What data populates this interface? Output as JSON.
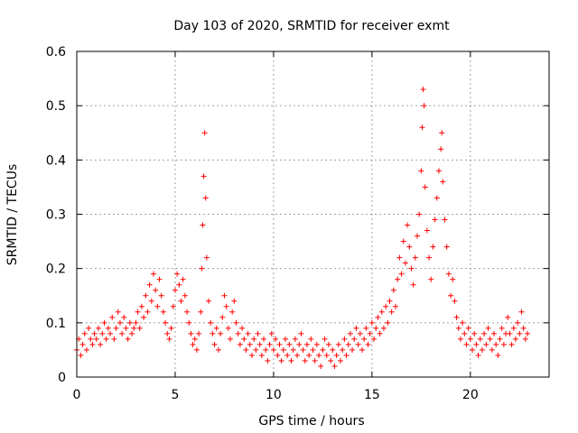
{
  "chart_data": {
    "type": "scatter",
    "title": "Day 103 of 2020, SRMTID for receiver exmt",
    "xlabel": "GPS time / hours",
    "ylabel": "SRMTID / TECUs",
    "xlim": [
      0,
      24
    ],
    "ylim": [
      0,
      0.6
    ],
    "xticks": [
      0,
      5,
      10,
      15,
      20
    ],
    "yticks": [
      0,
      0.1,
      0.2,
      0.3,
      0.4,
      0.5,
      0.6
    ],
    "xtick_labels": [
      "0",
      "5",
      "10",
      "15",
      "20"
    ],
    "ytick_labels": [
      "0",
      "0.1",
      "0.2",
      "0.3",
      "0.4",
      "0.5",
      "0.6"
    ],
    "grid": true,
    "marker": "+",
    "color": "#ff0000",
    "series": [
      {
        "name": "SRMTID",
        "points": [
          [
            0.0,
            0.05
          ],
          [
            0.1,
            0.07
          ],
          [
            0.2,
            0.04
          ],
          [
            0.3,
            0.06
          ],
          [
            0.4,
            0.08
          ],
          [
            0.5,
            0.05
          ],
          [
            0.6,
            0.09
          ],
          [
            0.7,
            0.07
          ],
          [
            0.8,
            0.06
          ],
          [
            0.9,
            0.08
          ],
          [
            1.0,
            0.07
          ],
          [
            1.1,
            0.09
          ],
          [
            1.2,
            0.06
          ],
          [
            1.3,
            0.08
          ],
          [
            1.4,
            0.1
          ],
          [
            1.5,
            0.07
          ],
          [
            1.6,
            0.09
          ],
          [
            1.7,
            0.08
          ],
          [
            1.8,
            0.11
          ],
          [
            1.9,
            0.07
          ],
          [
            2.0,
            0.09
          ],
          [
            2.1,
            0.12
          ],
          [
            2.2,
            0.1
          ],
          [
            2.3,
            0.08
          ],
          [
            2.4,
            0.11
          ],
          [
            2.5,
            0.09
          ],
          [
            2.6,
            0.07
          ],
          [
            2.7,
            0.1
          ],
          [
            2.8,
            0.08
          ],
          [
            2.9,
            0.09
          ],
          [
            3.0,
            0.1
          ],
          [
            3.1,
            0.12
          ],
          [
            3.2,
            0.09
          ],
          [
            3.3,
            0.13
          ],
          [
            3.4,
            0.11
          ],
          [
            3.5,
            0.15
          ],
          [
            3.6,
            0.12
          ],
          [
            3.7,
            0.17
          ],
          [
            3.8,
            0.14
          ],
          [
            3.9,
            0.19
          ],
          [
            4.0,
            0.16
          ],
          [
            4.1,
            0.13
          ],
          [
            4.2,
            0.18
          ],
          [
            4.3,
            0.15
          ],
          [
            4.4,
            0.12
          ],
          [
            4.5,
            0.1
          ],
          [
            4.6,
            0.08
          ],
          [
            4.7,
            0.07
          ],
          [
            4.8,
            0.09
          ],
          [
            4.9,
            0.13
          ],
          [
            5.0,
            0.16
          ],
          [
            5.1,
            0.19
          ],
          [
            5.2,
            0.17
          ],
          [
            5.3,
            0.14
          ],
          [
            5.4,
            0.18
          ],
          [
            5.5,
            0.15
          ],
          [
            5.6,
            0.12
          ],
          [
            5.7,
            0.1
          ],
          [
            5.8,
            0.08
          ],
          [
            5.9,
            0.06
          ],
          [
            6.0,
            0.07
          ],
          [
            6.1,
            0.05
          ],
          [
            6.2,
            0.08
          ],
          [
            6.3,
            0.12
          ],
          [
            6.35,
            0.2
          ],
          [
            6.4,
            0.28
          ],
          [
            6.45,
            0.37
          ],
          [
            6.5,
            0.45
          ],
          [
            6.55,
            0.33
          ],
          [
            6.6,
            0.22
          ],
          [
            6.7,
            0.14
          ],
          [
            6.8,
            0.1
          ],
          [
            6.9,
            0.08
          ],
          [
            7.0,
            0.06
          ],
          [
            7.1,
            0.09
          ],
          [
            7.2,
            0.05
          ],
          [
            7.3,
            0.08
          ],
          [
            7.4,
            0.11
          ],
          [
            7.5,
            0.15
          ],
          [
            7.6,
            0.13
          ],
          [
            7.7,
            0.09
          ],
          [
            7.8,
            0.07
          ],
          [
            7.9,
            0.12
          ],
          [
            8.0,
            0.14
          ],
          [
            8.1,
            0.1
          ],
          [
            8.2,
            0.08
          ],
          [
            8.3,
            0.06
          ],
          [
            8.4,
            0.09
          ],
          [
            8.5,
            0.07
          ],
          [
            8.6,
            0.05
          ],
          [
            8.7,
            0.08
          ],
          [
            8.8,
            0.06
          ],
          [
            8.9,
            0.04
          ],
          [
            9.0,
            0.07
          ],
          [
            9.1,
            0.05
          ],
          [
            9.2,
            0.08
          ],
          [
            9.3,
            0.06
          ],
          [
            9.4,
            0.04
          ],
          [
            9.5,
            0.07
          ],
          [
            9.6,
            0.05
          ],
          [
            9.7,
            0.03
          ],
          [
            9.8,
            0.06
          ],
          [
            9.9,
            0.08
          ],
          [
            10.0,
            0.05
          ],
          [
            10.1,
            0.07
          ],
          [
            10.2,
            0.04
          ],
          [
            10.3,
            0.06
          ],
          [
            10.4,
            0.03
          ],
          [
            10.5,
            0.05
          ],
          [
            10.6,
            0.07
          ],
          [
            10.7,
            0.04
          ],
          [
            10.8,
            0.06
          ],
          [
            10.9,
            0.03
          ],
          [
            11.0,
            0.05
          ],
          [
            11.1,
            0.07
          ],
          [
            11.2,
            0.04
          ],
          [
            11.3,
            0.06
          ],
          [
            11.4,
            0.08
          ],
          [
            11.5,
            0.05
          ],
          [
            11.6,
            0.03
          ],
          [
            11.7,
            0.06
          ],
          [
            11.8,
            0.04
          ],
          [
            11.9,
            0.07
          ],
          [
            12.0,
            0.05
          ],
          [
            12.1,
            0.03
          ],
          [
            12.2,
            0.06
          ],
          [
            12.3,
            0.04
          ],
          [
            12.4,
            0.02
          ],
          [
            12.5,
            0.05
          ],
          [
            12.6,
            0.07
          ],
          [
            12.7,
            0.04
          ],
          [
            12.8,
            0.06
          ],
          [
            12.9,
            0.03
          ],
          [
            13.0,
            0.05
          ],
          [
            13.1,
            0.02
          ],
          [
            13.2,
            0.04
          ],
          [
            13.3,
            0.06
          ],
          [
            13.4,
            0.03
          ],
          [
            13.5,
            0.05
          ],
          [
            13.6,
            0.07
          ],
          [
            13.7,
            0.04
          ],
          [
            13.8,
            0.06
          ],
          [
            13.9,
            0.08
          ],
          [
            14.0,
            0.05
          ],
          [
            14.1,
            0.07
          ],
          [
            14.2,
            0.09
          ],
          [
            14.3,
            0.06
          ],
          [
            14.4,
            0.08
          ],
          [
            14.5,
            0.05
          ],
          [
            14.6,
            0.07
          ],
          [
            14.7,
            0.09
          ],
          [
            14.8,
            0.06
          ],
          [
            14.9,
            0.08
          ],
          [
            15.0,
            0.1
          ],
          [
            15.1,
            0.07
          ],
          [
            15.2,
            0.09
          ],
          [
            15.3,
            0.11
          ],
          [
            15.4,
            0.08
          ],
          [
            15.5,
            0.12
          ],
          [
            15.6,
            0.09
          ],
          [
            15.7,
            0.13
          ],
          [
            15.8,
            0.1
          ],
          [
            15.9,
            0.14
          ],
          [
            16.0,
            0.12
          ],
          [
            16.1,
            0.16
          ],
          [
            16.2,
            0.13
          ],
          [
            16.3,
            0.18
          ],
          [
            16.4,
            0.22
          ],
          [
            16.5,
            0.19
          ],
          [
            16.6,
            0.25
          ],
          [
            16.7,
            0.21
          ],
          [
            16.8,
            0.28
          ],
          [
            16.9,
            0.24
          ],
          [
            17.0,
            0.2
          ],
          [
            17.1,
            0.17
          ],
          [
            17.2,
            0.22
          ],
          [
            17.3,
            0.26
          ],
          [
            17.4,
            0.3
          ],
          [
            17.5,
            0.38
          ],
          [
            17.55,
            0.46
          ],
          [
            17.6,
            0.53
          ],
          [
            17.65,
            0.5
          ],
          [
            17.7,
            0.35
          ],
          [
            17.8,
            0.27
          ],
          [
            17.9,
            0.22
          ],
          [
            18.0,
            0.18
          ],
          [
            18.1,
            0.24
          ],
          [
            18.2,
            0.29
          ],
          [
            18.3,
            0.33
          ],
          [
            18.4,
            0.38
          ],
          [
            18.5,
            0.42
          ],
          [
            18.55,
            0.45
          ],
          [
            18.6,
            0.36
          ],
          [
            18.7,
            0.29
          ],
          [
            18.8,
            0.24
          ],
          [
            18.9,
            0.19
          ],
          [
            19.0,
            0.15
          ],
          [
            19.1,
            0.18
          ],
          [
            19.2,
            0.14
          ],
          [
            19.3,
            0.11
          ],
          [
            19.4,
            0.09
          ],
          [
            19.5,
            0.07
          ],
          [
            19.6,
            0.1
          ],
          [
            19.7,
            0.08
          ],
          [
            19.8,
            0.06
          ],
          [
            19.9,
            0.09
          ],
          [
            20.0,
            0.07
          ],
          [
            20.1,
            0.05
          ],
          [
            20.2,
            0.08
          ],
          [
            20.3,
            0.06
          ],
          [
            20.4,
            0.04
          ],
          [
            20.5,
            0.07
          ],
          [
            20.6,
            0.05
          ],
          [
            20.7,
            0.08
          ],
          [
            20.8,
            0.06
          ],
          [
            20.9,
            0.09
          ],
          [
            21.0,
            0.07
          ],
          [
            21.1,
            0.05
          ],
          [
            21.2,
            0.08
          ],
          [
            21.3,
            0.06
          ],
          [
            21.4,
            0.04
          ],
          [
            21.5,
            0.07
          ],
          [
            21.6,
            0.09
          ],
          [
            21.7,
            0.06
          ],
          [
            21.8,
            0.08
          ],
          [
            21.9,
            0.11
          ],
          [
            22.0,
            0.08
          ],
          [
            22.1,
            0.06
          ],
          [
            22.2,
            0.09
          ],
          [
            22.3,
            0.07
          ],
          [
            22.4,
            0.1
          ],
          [
            22.5,
            0.08
          ],
          [
            22.6,
            0.12
          ],
          [
            22.7,
            0.09
          ],
          [
            22.8,
            0.07
          ],
          [
            22.9,
            0.08
          ]
        ]
      }
    ]
  }
}
